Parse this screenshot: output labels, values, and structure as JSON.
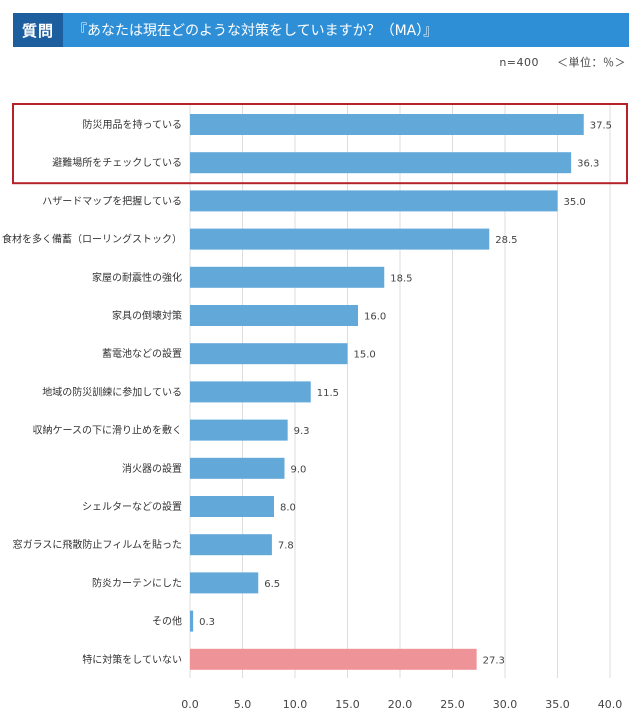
{
  "header": {
    "badge": "質問",
    "question": "『あなたは現在どのような対策をしていますか？（MA）』"
  },
  "meta": {
    "sample": "n=400",
    "unit": "＜単位：％＞"
  },
  "colors": {
    "header_bg": "#2f8fd6",
    "badge_bg": "#1d5e9e",
    "bar": "#62a8d9",
    "bar_highlight": "#ee9499",
    "highlight_box": "#b4232a",
    "grid": "#dddddd"
  },
  "chart_data": {
    "type": "bar",
    "orientation": "horizontal",
    "categories": [
      "防災用品を持っている",
      "避難場所をチェックしている",
      "ハザードマップを把握している",
      "食材を多く備蓄（ローリングストック）",
      "家屋の耐震性の強化",
      "家具の倒壊対策",
      "蓄電池などの設置",
      "地域の防災訓練に参加している",
      "収納ケースの下に滑り止めを敷く",
      "消火器の設置",
      "シェルターなどの設置",
      "窓ガラスに飛散防止フィルムを貼った",
      "防炎カーテンにした",
      "その他",
      "特に対策をしていない"
    ],
    "values": [
      37.5,
      36.3,
      35.0,
      28.5,
      18.5,
      16.0,
      15.0,
      11.5,
      9.3,
      9.0,
      8.0,
      7.8,
      6.5,
      0.3,
      27.3
    ],
    "value_labels": [
      "37.5",
      "36.3",
      "35.0",
      "28.5",
      "18.5",
      "16.0",
      "15.0",
      "11.5",
      "9.3",
      "9.0",
      "8.0",
      "7.8",
      "6.5",
      "0.3",
      "27.3"
    ],
    "xticks": [
      0,
      5,
      10,
      15,
      20,
      25,
      30,
      35,
      40
    ],
    "xtick_labels": [
      "0.0",
      "5.0",
      "10.0",
      "15.0",
      "20.0",
      "25.0",
      "30.0",
      "35.0",
      "40.0"
    ],
    "xlim": [
      0,
      40
    ],
    "grid": "vertical",
    "highlighted_categories": [
      0,
      1
    ],
    "special_color_categories": [
      14
    ]
  }
}
